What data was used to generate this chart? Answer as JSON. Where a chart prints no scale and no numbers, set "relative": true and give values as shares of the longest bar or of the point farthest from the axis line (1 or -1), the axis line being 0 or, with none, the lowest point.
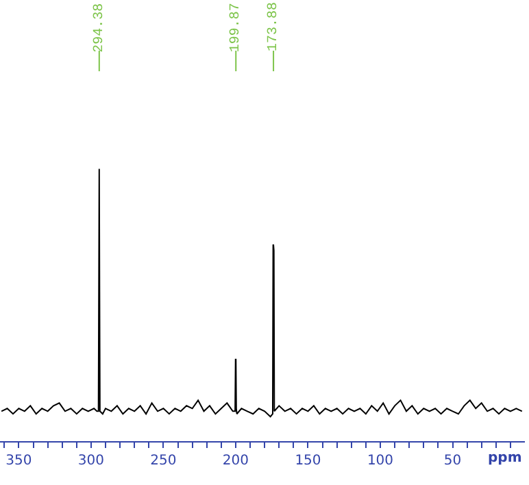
{
  "chart_data": {
    "type": "line",
    "relative": true,
    "xlabel": "ppm",
    "xlim": [
      363,
      0
    ],
    "xticks": [
      {
        "value": 360,
        "label": null
      },
      {
        "value": 350,
        "label": "350"
      },
      {
        "value": 340,
        "label": null
      },
      {
        "value": 330,
        "label": null
      },
      {
        "value": 320,
        "label": null
      },
      {
        "value": 310,
        "label": null
      },
      {
        "value": 300,
        "label": "300"
      },
      {
        "value": 290,
        "label": null
      },
      {
        "value": 280,
        "label": null
      },
      {
        "value": 270,
        "label": null
      },
      {
        "value": 260,
        "label": null
      },
      {
        "value": 250,
        "label": "250"
      },
      {
        "value": 240,
        "label": null
      },
      {
        "value": 230,
        "label": null
      },
      {
        "value": 220,
        "label": null
      },
      {
        "value": 210,
        "label": null
      },
      {
        "value": 200,
        "label": "200"
      },
      {
        "value": 190,
        "label": null
      },
      {
        "value": 180,
        "label": null
      },
      {
        "value": 170,
        "label": null
      },
      {
        "value": 160,
        "label": null
      },
      {
        "value": 150,
        "label": "150"
      },
      {
        "value": 140,
        "label": null
      },
      {
        "value": 130,
        "label": null
      },
      {
        "value": 120,
        "label": null
      },
      {
        "value": 110,
        "label": null
      },
      {
        "value": 100,
        "label": "100"
      },
      {
        "value": 90,
        "label": null
      },
      {
        "value": 80,
        "label": null
      },
      {
        "value": 70,
        "label": null
      },
      {
        "value": 60,
        "label": null
      },
      {
        "value": 50,
        "label": "50"
      },
      {
        "value": 40,
        "label": null
      },
      {
        "value": 30,
        "label": null
      },
      {
        "value": 20,
        "label": null
      },
      {
        "value": 10,
        "label": null
      }
    ],
    "tick_labels": "x",
    "marker": "none",
    "line_style": "solid",
    "annotations": [
      {
        "text": "294.38",
        "x": 294.38
      },
      {
        "text": "199.87",
        "x": 199.87
      },
      {
        "text": "173.88",
        "x": 173.88
      }
    ],
    "series": [
      {
        "color": "#000000",
        "x": [
          362,
          358,
          354,
          350,
          346,
          342,
          338,
          334,
          330,
          326,
          322,
          318,
          314,
          310,
          306,
          302,
          298,
          296,
          294.9,
          294.6,
          294.38,
          294.15,
          293.9,
          292,
          290,
          286,
          282,
          278,
          274,
          270,
          266,
          262,
          258,
          254,
          250,
          246,
          242,
          238,
          234,
          230,
          226,
          222,
          218,
          214,
          210,
          206,
          202,
          200.4,
          200.1,
          199.87,
          199.6,
          199.2,
          196,
          192,
          188,
          184,
          180,
          176,
          174.4,
          174.1,
          173.88,
          173.6,
          173.3,
          170,
          166,
          162,
          158,
          154,
          150,
          146,
          142,
          138,
          134,
          130,
          126,
          122,
          118,
          114,
          110,
          106,
          102,
          98,
          94,
          90,
          86,
          82,
          78,
          74,
          70,
          66,
          62,
          58,
          54,
          50,
          46,
          42,
          38,
          34,
          30,
          26,
          22,
          18,
          14,
          10,
          6,
          2
        ],
        "values": [
          0.11,
          0.12,
          0.1,
          0.12,
          0.11,
          0.13,
          0.1,
          0.12,
          0.11,
          0.13,
          0.14,
          0.11,
          0.12,
          0.1,
          0.12,
          0.11,
          0.12,
          0.11,
          0.11,
          0.62,
          1,
          0.55,
          0.11,
          0.1,
          0.12,
          0.11,
          0.13,
          0.1,
          0.12,
          0.11,
          0.13,
          0.1,
          0.14,
          0.11,
          0.12,
          0.1,
          0.12,
          0.11,
          0.13,
          0.12,
          0.15,
          0.11,
          0.13,
          0.1,
          0.12,
          0.14,
          0.11,
          0.11,
          0.3,
          0.3,
          0.12,
          0.1,
          0.12,
          0.11,
          0.1,
          0.12,
          0.11,
          0.09,
          0.1,
          0.72,
          0.72,
          0.7,
          0.11,
          0.13,
          0.11,
          0.12,
          0.1,
          0.12,
          0.11,
          0.13,
          0.1,
          0.12,
          0.11,
          0.12,
          0.1,
          0.12,
          0.11,
          0.12,
          0.1,
          0.13,
          0.11,
          0.14,
          0.1,
          0.13,
          0.15,
          0.11,
          0.13,
          0.1,
          0.12,
          0.11,
          0.12,
          0.1,
          0.12,
          0.11,
          0.1,
          0.13,
          0.15,
          0.12,
          0.14,
          0.11,
          0.12,
          0.1,
          0.12,
          0.11,
          0.12,
          0.11
        ]
      }
    ]
  }
}
